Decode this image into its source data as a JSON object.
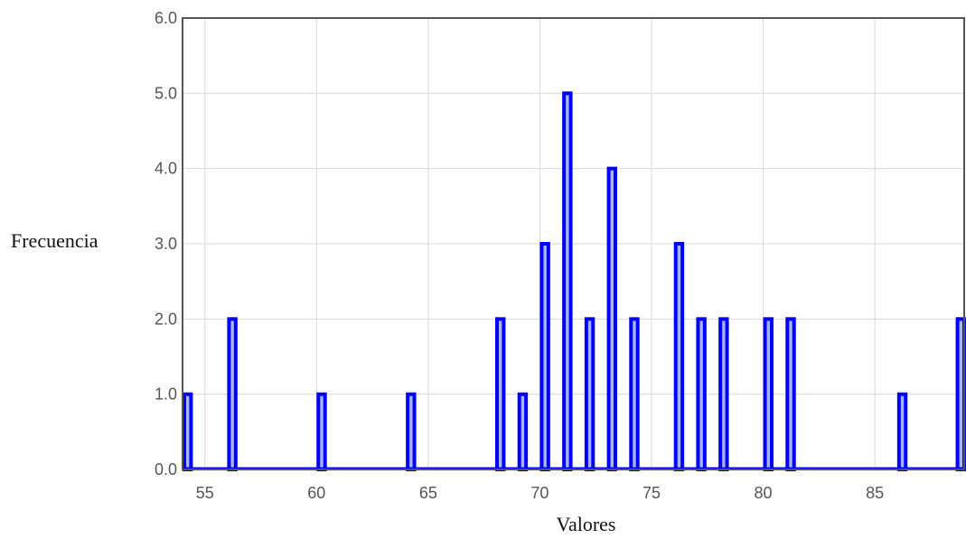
{
  "chart_data": {
    "type": "bar",
    "xlabel": "Valores",
    "ylabel": "Frecuencia",
    "xlim": [
      54,
      89
    ],
    "ylim": [
      0,
      6
    ],
    "grid": true,
    "x_ticks": [
      55,
      60,
      65,
      70,
      75,
      80,
      85
    ],
    "y_ticks": [
      "0.0",
      "1.0",
      "2.0",
      "3.0",
      "4.0",
      "5.0",
      "6.0"
    ],
    "series": [
      {
        "x": [
          54,
          56,
          60,
          64,
          68,
          69,
          70,
          71,
          72,
          73,
          74,
          76,
          77,
          78,
          80,
          81,
          86,
          89
        ],
        "values": [
          1,
          2,
          1,
          1,
          2,
          1,
          3,
          5,
          2,
          4,
          2,
          3,
          2,
          2,
          2,
          2,
          1,
          2
        ]
      }
    ],
    "colors": {
      "bar_stroke": "#0000ff",
      "bar_fill": "#aab4ff",
      "grid": "#d9d9d9",
      "frame": "#555555"
    }
  }
}
